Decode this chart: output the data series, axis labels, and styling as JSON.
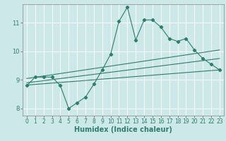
{
  "xlabel": "Humidex (Indice chaleur)",
  "ylabel": "",
  "background_color": "#cce8e8",
  "grid_color": "#ffffff",
  "line_color": "#2e7d6e",
  "xlim": [
    -0.5,
    23.5
  ],
  "ylim": [
    7.75,
    11.65
  ],
  "yticks": [
    8,
    9,
    10,
    11
  ],
  "xticks": [
    0,
    1,
    2,
    3,
    4,
    5,
    6,
    7,
    8,
    9,
    10,
    11,
    12,
    13,
    14,
    15,
    16,
    17,
    18,
    19,
    20,
    21,
    22,
    23
  ],
  "series": {
    "main": {
      "x": [
        0,
        1,
        2,
        3,
        4,
        5,
        6,
        7,
        8,
        9,
        10,
        11,
        12,
        13,
        14,
        15,
        16,
        17,
        18,
        19,
        20,
        21,
        22,
        23
      ],
      "y": [
        8.8,
        9.1,
        9.1,
        9.1,
        8.8,
        8.0,
        8.2,
        8.4,
        8.85,
        9.35,
        9.9,
        11.05,
        11.55,
        10.4,
        11.1,
        11.1,
        10.85,
        10.45,
        10.35,
        10.45,
        10.05,
        9.75,
        9.55,
        9.35
      ]
    },
    "upper": {
      "x": [
        0,
        23
      ],
      "y": [
        9.05,
        10.05
      ]
    },
    "middle": {
      "x": [
        0,
        23
      ],
      "y": [
        8.9,
        9.75
      ]
    },
    "lower": {
      "x": [
        0,
        23
      ],
      "y": [
        8.82,
        9.35
      ]
    }
  },
  "title_fontsize": 7,
  "axis_fontsize": 7,
  "tick_fontsize": 5.5
}
